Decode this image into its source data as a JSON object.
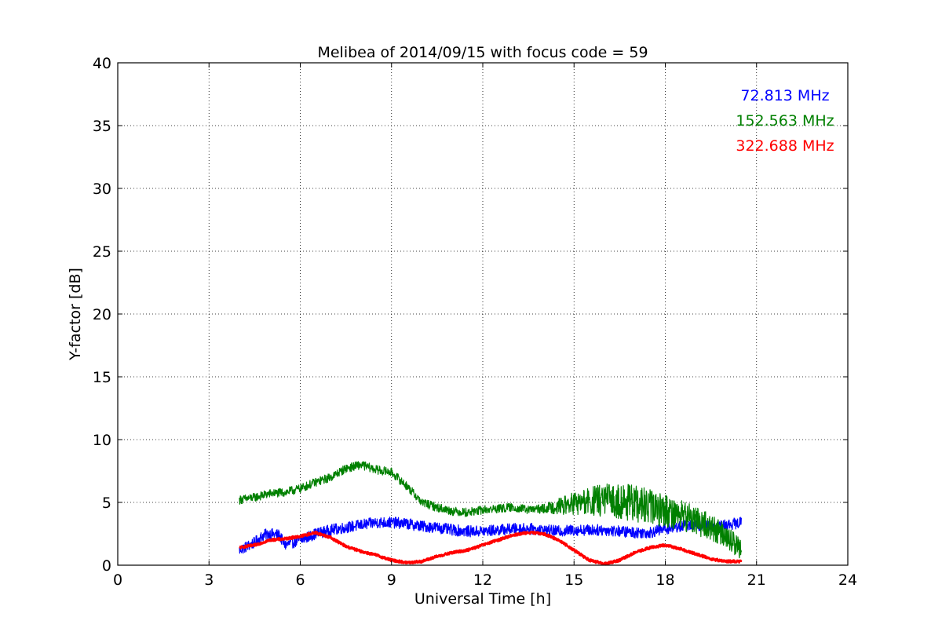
{
  "chart_data": {
    "type": "line",
    "title": "Melibea of 2014/09/15 with focus code = 59",
    "xlabel": "Universal Time [h]",
    "ylabel": "Y-factor [dB]",
    "xlim": [
      0,
      24
    ],
    "ylim": [
      0,
      40
    ],
    "xticks": [
      0,
      3,
      6,
      9,
      12,
      15,
      18,
      21,
      24
    ],
    "yticks": [
      0,
      5,
      10,
      15,
      20,
      25,
      30,
      35,
      40
    ],
    "grid": true,
    "legend_placement": "top-right",
    "series": [
      {
        "name": "72.813 MHz",
        "color": "#0000ff",
        "noise": 0.45,
        "x": [
          4.0,
          4.5,
          4.8,
          5.0,
          5.3,
          5.5,
          6.0,
          6.5,
          7.0,
          7.5,
          8.0,
          8.5,
          9.0,
          9.5,
          10.0,
          10.5,
          11.0,
          11.5,
          12.0,
          12.5,
          13.0,
          13.5,
          14.0,
          14.5,
          15.0,
          15.5,
          16.0,
          16.5,
          17.0,
          17.5,
          18.0,
          18.5,
          19.0,
          19.5,
          20.0,
          20.5
        ],
        "y": [
          1.2,
          1.8,
          2.4,
          2.5,
          2.4,
          1.6,
          2.0,
          2.5,
          2.8,
          3.0,
          3.2,
          3.4,
          3.4,
          3.3,
          3.1,
          3.0,
          2.8,
          2.7,
          2.7,
          2.8,
          2.9,
          2.9,
          2.8,
          2.7,
          2.8,
          2.8,
          2.8,
          2.7,
          2.6,
          2.6,
          2.9,
          3.1,
          3.2,
          3.1,
          3.2,
          3.4
        ]
      },
      {
        "name": "152.563 MHz",
        "color": "#008000",
        "noise": 0.35,
        "x": [
          4.0,
          4.5,
          5.0,
          5.5,
          6.0,
          6.5,
          7.0,
          7.5,
          8.0,
          8.5,
          9.0,
          9.5,
          10.0,
          10.5,
          11.0,
          11.5,
          12.0,
          12.5,
          13.0,
          13.5,
          14.0,
          14.5,
          15.0,
          15.5,
          16.0,
          16.5,
          17.0,
          17.5,
          18.0,
          18.5,
          19.0,
          19.5,
          20.0,
          20.5
        ],
        "y": [
          5.2,
          5.4,
          5.7,
          5.8,
          6.1,
          6.6,
          7.0,
          7.7,
          8.0,
          7.6,
          7.4,
          6.3,
          5.0,
          4.6,
          4.3,
          4.2,
          4.4,
          4.5,
          4.6,
          4.4,
          4.5,
          4.7,
          4.9,
          5.0,
          5.2,
          5.1,
          4.9,
          4.6,
          4.4,
          4.0,
          3.6,
          3.0,
          2.3,
          1.2
        ],
        "noise_growth": [
          [
            14.0,
            0.35
          ],
          [
            15.5,
            1.2
          ],
          [
            17.0,
            1.5
          ],
          [
            19.0,
            1.2
          ],
          [
            20.5,
            0.8
          ]
        ]
      },
      {
        "name": "322.688 MHz",
        "color": "#ff0000",
        "noise": 0.1,
        "x": [
          4.0,
          4.5,
          5.0,
          5.5,
          6.0,
          6.5,
          7.0,
          7.5,
          8.0,
          8.5,
          9.0,
          9.5,
          10.0,
          10.5,
          11.0,
          11.5,
          12.0,
          12.5,
          13.0,
          13.5,
          14.0,
          14.5,
          15.0,
          15.5,
          16.0,
          16.5,
          17.0,
          17.5,
          18.0,
          18.5,
          19.0,
          19.5,
          20.0,
          20.5
        ],
        "y": [
          1.4,
          1.6,
          2.0,
          2.1,
          2.3,
          2.6,
          2.2,
          1.5,
          1.1,
          0.8,
          0.4,
          0.2,
          0.3,
          0.7,
          1.0,
          1.2,
          1.6,
          2.0,
          2.4,
          2.6,
          2.5,
          2.0,
          1.2,
          0.4,
          0.1,
          0.4,
          1.0,
          1.4,
          1.6,
          1.3,
          0.9,
          0.5,
          0.3,
          0.3
        ]
      }
    ]
  }
}
